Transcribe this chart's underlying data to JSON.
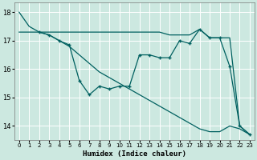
{
  "xlabel": "Humidex (Indice chaleur)",
  "background_color": "#cce8e0",
  "grid_color": "#ffffff",
  "line_color": "#006060",
  "xlim": [
    -0.5,
    23.5
  ],
  "ylim": [
    13.5,
    18.35
  ],
  "yticks": [
    14,
    15,
    16,
    17,
    18
  ],
  "xticks": [
    0,
    1,
    2,
    3,
    4,
    5,
    6,
    7,
    8,
    9,
    10,
    11,
    12,
    13,
    14,
    15,
    16,
    17,
    18,
    19,
    20,
    21,
    22,
    23
  ],
  "line1_x": [
    0,
    1,
    2,
    3,
    4,
    5,
    6,
    7,
    8,
    9,
    10,
    11,
    12,
    13,
    14,
    15,
    16,
    17,
    18,
    19,
    20,
    21,
    22,
    23
  ],
  "line1_y": [
    18.0,
    17.5,
    17.3,
    17.2,
    17.0,
    16.8,
    16.5,
    16.2,
    15.9,
    15.7,
    15.5,
    15.3,
    15.1,
    14.9,
    14.7,
    14.5,
    14.3,
    14.1,
    13.9,
    13.8,
    13.8,
    14.0,
    13.9,
    13.7
  ],
  "line2_x": [
    2,
    3,
    4,
    5,
    6,
    7,
    8,
    9,
    10,
    11,
    12,
    13,
    14,
    15,
    16,
    17,
    18,
    19,
    20,
    21,
    22,
    23
  ],
  "line2_y": [
    17.3,
    17.2,
    17.0,
    16.85,
    15.6,
    15.1,
    15.4,
    15.3,
    15.4,
    15.4,
    16.5,
    16.5,
    16.4,
    16.4,
    17.0,
    16.9,
    17.4,
    17.1,
    17.1,
    16.1,
    14.0,
    13.7
  ],
  "line3_x": [
    0,
    1,
    2,
    3,
    4,
    5,
    6,
    7,
    8,
    9,
    10,
    11,
    12,
    13,
    14,
    15,
    16,
    17,
    18,
    19,
    20,
    21,
    22,
    23
  ],
  "line3_y": [
    17.3,
    17.3,
    17.3,
    17.3,
    17.3,
    17.3,
    17.3,
    17.3,
    17.3,
    17.3,
    17.3,
    17.3,
    17.3,
    17.3,
    17.3,
    17.2,
    17.2,
    17.2,
    17.4,
    17.1,
    17.1,
    17.1,
    14.0,
    13.7
  ]
}
